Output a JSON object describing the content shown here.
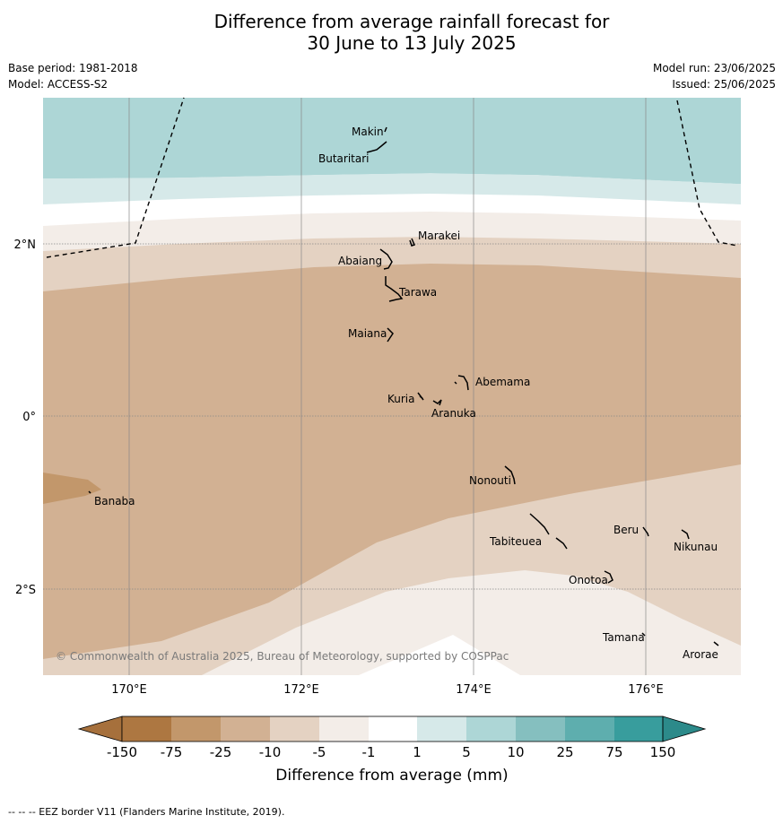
{
  "title": {
    "line1": "Difference from average rainfall forecast for",
    "line2": "30 June to 13 July 2025"
  },
  "meta": {
    "base_period": "Base period: 1981-2018",
    "model": "Model: ACCESS-S2",
    "model_run": "Model run: 23/06/2025",
    "issued": "Issued: 25/06/2025"
  },
  "map": {
    "lon_ticks": [
      "170°E",
      "172°E",
      "174°E",
      "176°E"
    ],
    "lat_ticks": [
      "2°N",
      "0°",
      "2°S"
    ],
    "places": [
      "Makin",
      "Butaritari",
      "Marakei",
      "Abaiang",
      "Tarawa",
      "Maiana",
      "Abemama",
      "Kuria",
      "Aranuka",
      "Nonouti",
      "Banaba",
      "Tabiteuea",
      "Beru",
      "Nikunau",
      "Onotoa",
      "Tamana",
      "Arorae"
    ],
    "copyright": "© Commonwealth of Australia 2025, Bureau of Meteorology, supported by COSPPac"
  },
  "colorbar": {
    "ticks": [
      "-150",
      "-75",
      "-25",
      "-10",
      "-5",
      "-1",
      "1",
      "5",
      "10",
      "25",
      "75",
      "150"
    ],
    "colors": [
      "#a6703c",
      "#ad7741",
      "#c2976b",
      "#d2b193",
      "#e4d2c2",
      "#f3ede8",
      "#ffffff",
      "#d6e9e9",
      "#add6d6",
      "#85bfbf",
      "#5eaeae",
      "#389d9d",
      "#2c8a8a"
    ],
    "label": "Difference from average (mm)"
  },
  "footnote": "--  --  -- EEZ border V11 (Flanders Marine Institute, 2019)."
}
